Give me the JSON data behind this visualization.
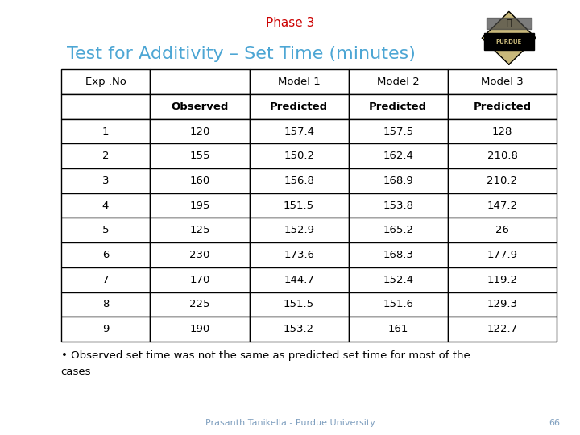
{
  "phase_title": "Phase 3",
  "slide_title": "Test for Additivity – Set Time (minutes)",
  "col_headers_row1": [
    "Exp .No",
    "",
    "Model 1",
    "Model 2",
    "Model 3"
  ],
  "col_headers_row2": [
    "",
    "Observed",
    "Predicted",
    "Predicted",
    "Predicted"
  ],
  "rows": [
    [
      "1",
      "120",
      "157.4",
      "157.5",
      "128"
    ],
    [
      "2",
      "155",
      "150.2",
      "162.4",
      "210.8"
    ],
    [
      "3",
      "160",
      "156.8",
      "168.9",
      "210.2"
    ],
    [
      "4",
      "195",
      "151.5",
      "153.8",
      "147.2"
    ],
    [
      "5",
      "125",
      "152.9",
      "165.2",
      "26"
    ],
    [
      "6",
      "230",
      "173.6",
      "168.3",
      "177.9"
    ],
    [
      "7",
      "170",
      "144.7",
      "152.4",
      "119.2"
    ],
    [
      "8",
      "225",
      "151.5",
      "151.6",
      "129.3"
    ],
    [
      "9",
      "190",
      "153.2",
      "161",
      "122.7"
    ]
  ],
  "footnote_line1": "• Observed set time was not the same as predicted set time for most of the",
  "footnote_line2": "cases",
  "footer_text": "Prasanth Tanikella - Purdue University",
  "footer_page": "66",
  "phase_color": "#cc0000",
  "title_color": "#4da6d4",
  "background_color": "#ffffff",
  "footer_color": "#7f9fbf"
}
